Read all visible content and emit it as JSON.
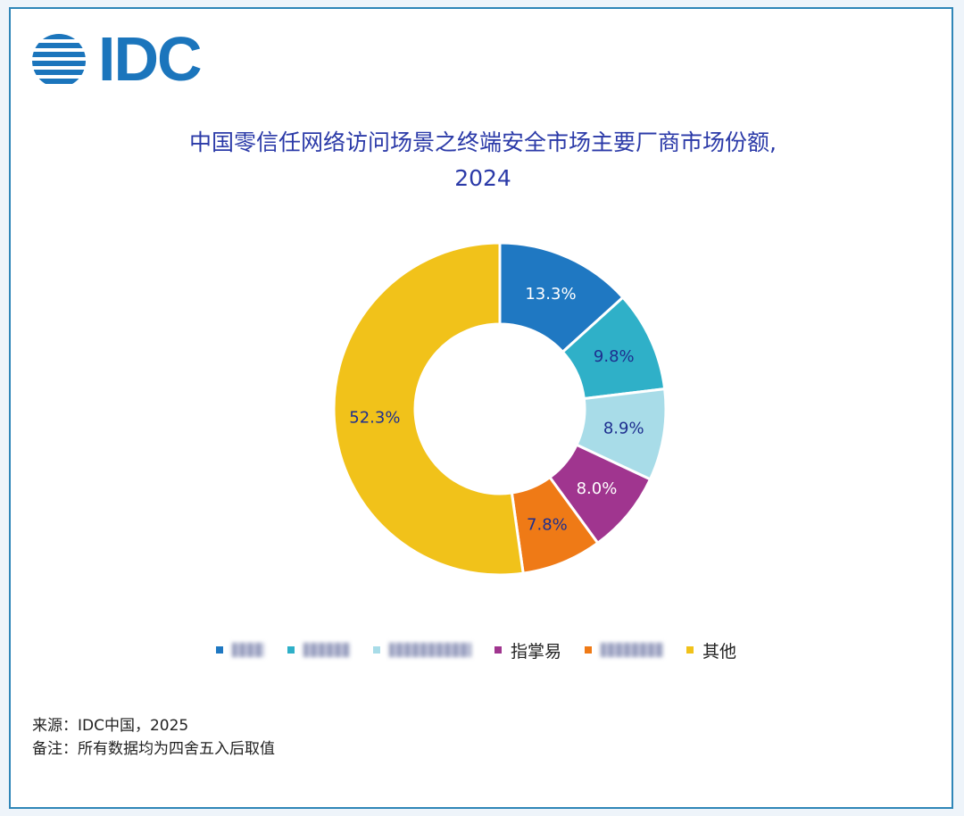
{
  "logo": {
    "text": "IDC"
  },
  "chart_data": {
    "type": "pie",
    "style": "donut",
    "title_line1": "中国零信任网络访问场景之终端安全市场主要厂商市场份额,",
    "title_line2": "2024",
    "slices": [
      {
        "label": "",
        "value": 13.3,
        "value_label": "13.3%",
        "color": "#1f78c2",
        "text_color": "#ffffff"
      },
      {
        "label": "",
        "value": 9.8,
        "value_label": "9.8%",
        "color": "#2fb0c8",
        "text_color": "#1e2f8f"
      },
      {
        "label": "",
        "value": 8.9,
        "value_label": "8.9%",
        "color": "#a8dce8",
        "text_color": "#1e2f8f"
      },
      {
        "label": "指掌易",
        "value": 8.0,
        "value_label": "8.0%",
        "color": "#a0358f",
        "text_color": "#ffffff"
      },
      {
        "label": "",
        "value": 7.8,
        "value_label": "7.8%",
        "color": "#ef7a16",
        "text_color": "#1e2f8f"
      },
      {
        "label": "其他",
        "value": 52.3,
        "value_label": "52.3%",
        "color": "#f1c21a",
        "text_color": "#1e2f8f"
      }
    ],
    "legend_placement": "bottom"
  },
  "footer": {
    "source": "来源：IDC中国，2025",
    "note": "备注：所有数据均为四舍五入后取值"
  }
}
